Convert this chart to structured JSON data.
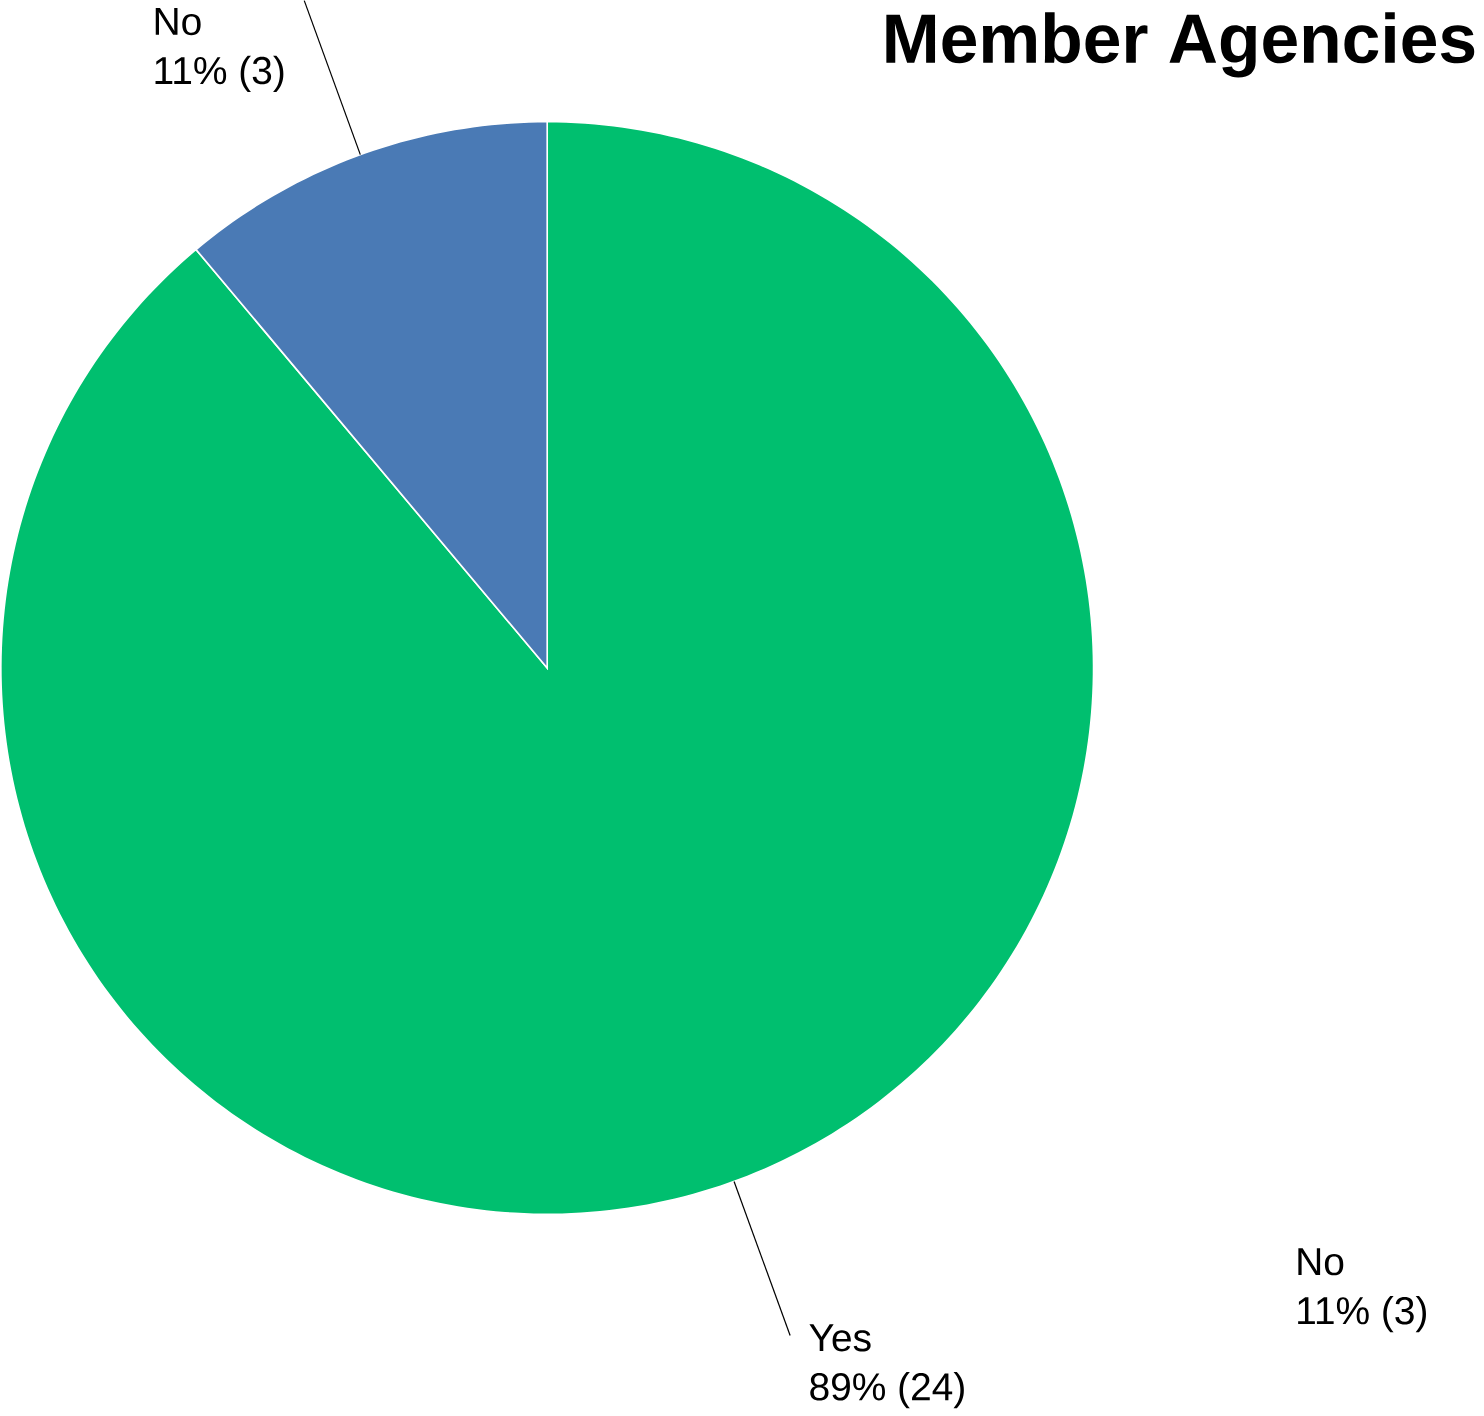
{
  "chart_data": {
    "type": "pie",
    "title": "Member Agencies",
    "categories": [
      "Yes",
      "No"
    ],
    "values": [
      24,
      3
    ],
    "value_labels": [
      "89% (24)",
      "11% (3)"
    ],
    "colors": [
      "#00bf6f",
      "#4a7ab5"
    ],
    "annotations": [
      "No",
      "11% (3)"
    ]
  }
}
